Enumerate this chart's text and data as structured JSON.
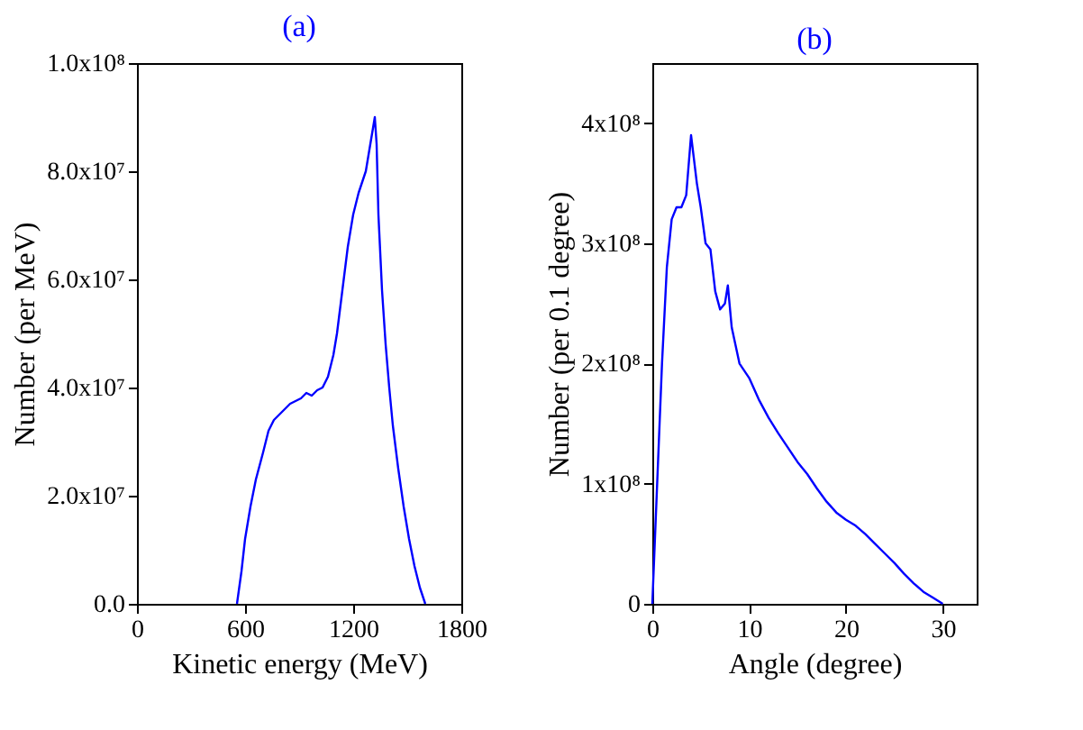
{
  "chart_data": [
    {
      "type": "line",
      "title": "(a)",
      "xlabel": "Kinetic energy (MeV)",
      "ylabel": "Number (per MeV)",
      "x": [
        555,
        580,
        600,
        630,
        660,
        700,
        730,
        760,
        790,
        820,
        850,
        880,
        910,
        940,
        970,
        1000,
        1030,
        1060,
        1090,
        1110,
        1140,
        1170,
        1200,
        1230,
        1250,
        1270,
        1290,
        1300,
        1310,
        1320,
        1330,
        1340,
        1360,
        1380,
        1400,
        1420,
        1450,
        1480,
        1510,
        1540,
        1570,
        1600
      ],
      "values": [
        0,
        6000000,
        12000000,
        18000000,
        23000000,
        28000000,
        32000000,
        34000000,
        35000000,
        36000000,
        37000000,
        37500000,
        38000000,
        39000000,
        38500000,
        39500000,
        40000000,
        42000000,
        46000000,
        50000000,
        58000000,
        66000000,
        72000000,
        76000000,
        78000000,
        80000000,
        84000000,
        86000000,
        88000000,
        90000000,
        85000000,
        72000000,
        58000000,
        48000000,
        40000000,
        33000000,
        25000000,
        18000000,
        12000000,
        7000000,
        3000000,
        0
      ],
      "color": "#0000ff",
      "xlim": [
        0,
        1800
      ],
      "ylim": [
        0,
        100000000
      ],
      "xticks": [
        0,
        600,
        1200,
        1800
      ],
      "yticks": [
        {
          "value": 0,
          "label": "0.0"
        },
        {
          "value": 20000000,
          "label": "2.0x10⁷"
        },
        {
          "value": 40000000,
          "label": "4.0x10⁷"
        },
        {
          "value": 60000000,
          "label": "6.0x10⁷"
        },
        {
          "value": 80000000,
          "label": "8.0x10⁷"
        },
        {
          "value": 100000000,
          "label": "1.0x10⁸"
        }
      ],
      "grid": false
    },
    {
      "type": "line",
      "title": "(b)",
      "xlabel": "Angle (degree)",
      "ylabel": "Number (per 0.1 degree)",
      "x": [
        0,
        0.5,
        1,
        1.5,
        2,
        2.5,
        3,
        3.5,
        4,
        4.3,
        4.6,
        5,
        5.5,
        6,
        6.5,
        7,
        7.5,
        7.8,
        8.2,
        9,
        10,
        11,
        12,
        13,
        14,
        15,
        16,
        17,
        18,
        19,
        20,
        21,
        22,
        23,
        24,
        25,
        26,
        27,
        28,
        29,
        30
      ],
      "values": [
        0,
        100000000,
        200000000,
        280000000,
        320000000,
        330000000,
        330000000,
        340000000,
        390000000,
        370000000,
        350000000,
        330000000,
        300000000,
        295000000,
        260000000,
        245000000,
        250000000,
        265000000,
        230000000,
        200000000,
        188000000,
        170000000,
        155000000,
        142000000,
        130000000,
        118000000,
        108000000,
        96000000,
        85000000,
        76000000,
        70000000,
        65000000,
        58000000,
        50000000,
        42000000,
        34000000,
        25000000,
        17000000,
        10000000,
        5000000,
        0
      ],
      "color": "#0000ff",
      "xlim": [
        0,
        33.5
      ],
      "ylim": [
        0,
        450000000
      ],
      "xticks": [
        0,
        10,
        20,
        30
      ],
      "yticks": [
        {
          "value": 0,
          "label": "0"
        },
        {
          "value": 100000000,
          "label": "1x10⁸"
        },
        {
          "value": 200000000,
          "label": "2x10⁸"
        },
        {
          "value": 300000000,
          "label": "3x10⁸"
        },
        {
          "value": 400000000,
          "label": "4x10⁸"
        }
      ],
      "grid": false
    }
  ]
}
